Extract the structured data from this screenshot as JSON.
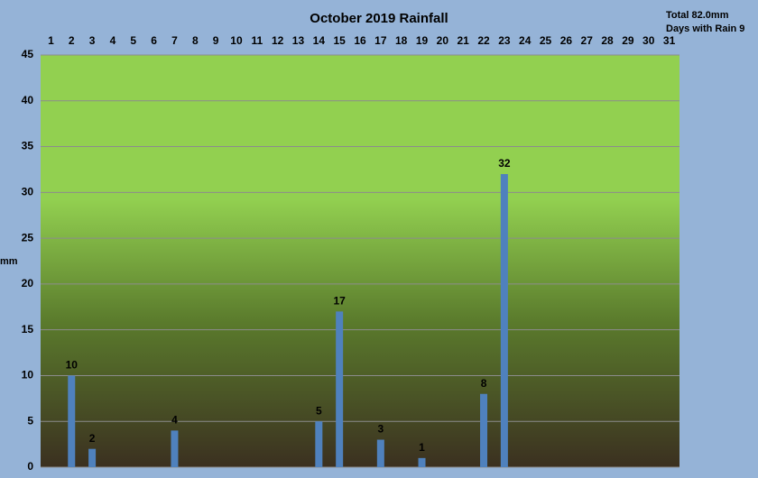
{
  "chart_data": {
    "type": "bar",
    "title": "October 2019 Rainfall",
    "annotations": [
      "Total 82.0mm",
      "Days with Rain 9"
    ],
    "y_label": "mm",
    "categories": [
      "1",
      "2",
      "3",
      "4",
      "5",
      "6",
      "7",
      "8",
      "9",
      "10",
      "11",
      "12",
      "13",
      "14",
      "15",
      "16",
      "17",
      "18",
      "19",
      "20",
      "21",
      "22",
      "23",
      "24",
      "25",
      "26",
      "27",
      "28",
      "29",
      "30",
      "31"
    ],
    "values": [
      0,
      10,
      2,
      0,
      0,
      0,
      4,
      0,
      0,
      0,
      0,
      0,
      0,
      5,
      17,
      0,
      3,
      0,
      1,
      0,
      0,
      8,
      32,
      0,
      0,
      0,
      0,
      0,
      0,
      0,
      0
    ],
    "color": "#4f81bd",
    "ylim": [
      0,
      45
    ],
    "yticks": [
      0,
      5,
      10,
      15,
      20,
      25,
      30,
      35,
      40,
      45
    ],
    "grid": true
  }
}
